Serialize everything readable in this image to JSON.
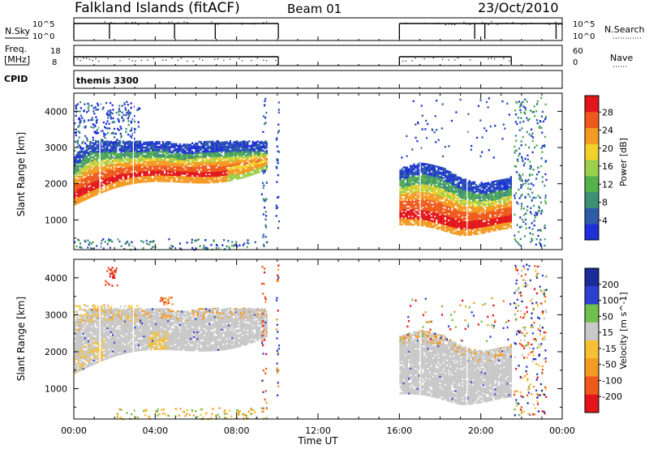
{
  "header": {
    "station": "Falkland Islands (fitACF)",
    "beam": "Beam 01",
    "date": "23/Oct/2010"
  },
  "left_labels": {
    "nsky": "N.Sky",
    "freq_line1": "Freq.",
    "freq_line2": "[MHz]",
    "cpid": "CPID"
  },
  "right_labels": {
    "nsearch": "N.Search",
    "nave": "Nave"
  },
  "nsky_axis": {
    "top": "10^5",
    "bottom": "10^0"
  },
  "freq_axis": {
    "top": "18",
    "bottom": "8"
  },
  "nave_axis": {
    "top": "60",
    "bottom": "0"
  },
  "nsearch_axis": {
    "top": "10^5",
    "bottom": "10^0"
  },
  "cpid_label": "themis 3300",
  "colors": {
    "power": [
      "#1d2fd8",
      "#2d5ba8",
      "#3f8f78",
      "#55b24a",
      "#9bd04a",
      "#f1d12a",
      "#f49a22",
      "#ef5a1c",
      "#e2161a"
    ],
    "velocity": [
      "#e2161a",
      "#ef5a1c",
      "#f49a22",
      "#f6bf34",
      "#c8c8c8",
      "#6fc04c",
      "#2e3fd0",
      "#1c2a9a"
    ],
    "ground_scatter": "#c8c8c8"
  },
  "chart_data": [
    {
      "type": "heatmap",
      "name_hint": "power",
      "xlabel": "",
      "ylabel": "Slant Range [km]",
      "xlim": [
        0,
        24
      ],
      "ylim": [
        180,
        4500
      ],
      "yticks": [
        "1000",
        "2000",
        "3000",
        "4000"
      ],
      "colorbar_label": "Power [dB]",
      "colorbar_ticks": [
        "4",
        "8",
        "12",
        "16",
        "20",
        "24",
        "28"
      ],
      "clim": [
        0,
        32
      ],
      "grid": false,
      "echo_regions": [
        {
          "t_start": 0.0,
          "t_end": 9.5,
          "range_low": 1550,
          "range_high": 2900,
          "peak_power_db": 30
        },
        {
          "t_start": 0.0,
          "t_end": 3.0,
          "range_low": 2700,
          "range_high": 3600,
          "peak_power_db": 12
        },
        {
          "t_start": 16.0,
          "t_end": 21.5,
          "range_low": 700,
          "range_high": 2700,
          "peak_power_db": 28
        }
      ]
    },
    {
      "type": "heatmap",
      "name_hint": "velocity",
      "xlabel": "Time UT",
      "ylabel": "Slant Range [km]",
      "xlim": [
        0,
        24
      ],
      "ylim": [
        180,
        4500
      ],
      "xticks": [
        "00:00",
        "04:00",
        "08:00",
        "12:00",
        "16:00",
        "20:00",
        "00:00"
      ],
      "yticks": [
        "1000",
        "2000",
        "3000",
        "4000"
      ],
      "colorbar_label": "Velocity [m s^-1]",
      "colorbar_ticks": [
        "200",
        "100",
        "50",
        "15",
        "-15",
        "-50",
        "-100",
        "-200"
      ],
      "clim": [
        -250,
        250
      ],
      "grid": false,
      "echo_regions": [
        {
          "t_start": 0.0,
          "t_end": 9.5,
          "range_low": 1500,
          "range_high": 2900,
          "dominant": "ground scatter"
        },
        {
          "t_start": 16.0,
          "t_end": 21.5,
          "range_low": 700,
          "range_high": 2300,
          "dominant": "ground scatter"
        }
      ]
    }
  ]
}
